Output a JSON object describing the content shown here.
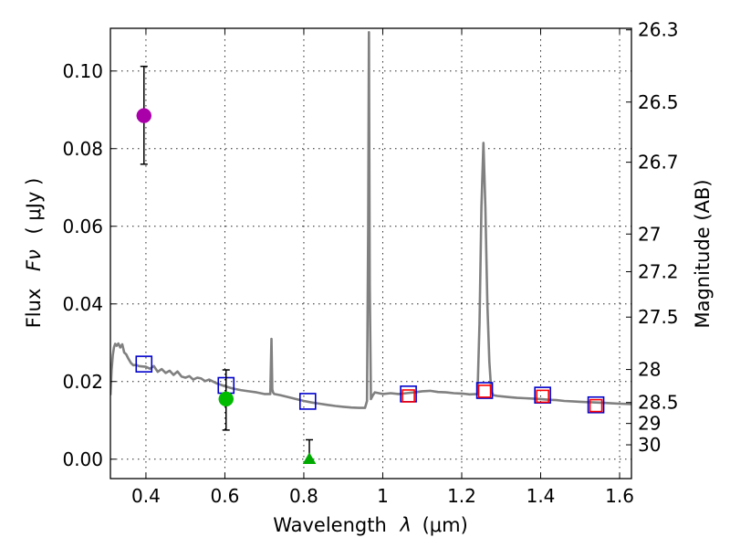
{
  "chart_data": {
    "type": "scatter",
    "xlabel": "Wavelength",
    "xlabel_symbol": "λ",
    "xlabel_unit": "(μm)",
    "ylabel": "Flux",
    "ylabel_symbol": "Fν",
    "ylabel_unit": "( μJy )",
    "y2label": "Magnitude (AB)",
    "xlim": [
      0.31,
      1.63
    ],
    "ylim": [
      -0.005,
      0.111
    ],
    "grid": true,
    "x_ticks": [
      0.4,
      0.6,
      0.8,
      1.0,
      1.2,
      1.4,
      1.6
    ],
    "x_tick_labels": [
      "0.4",
      "0.6",
      "0.8",
      "1",
      "1.2",
      "1.4",
      "1.6"
    ],
    "y_ticks": [
      0.0,
      0.02,
      0.04,
      0.06,
      0.08,
      0.1
    ],
    "y_tick_labels": [
      "0.00",
      "0.02",
      "0.04",
      "0.06",
      "0.08",
      "0.10"
    ],
    "y2_ticks": [
      {
        "label": "26.3",
        "flux": 0.1106
      },
      {
        "label": "26.5",
        "flux": 0.092
      },
      {
        "label": "26.7",
        "flux": 0.0765
      },
      {
        "label": "27",
        "flux": 0.058
      },
      {
        "label": "27.2",
        "flux": 0.0483
      },
      {
        "label": "27.5",
        "flux": 0.0366
      },
      {
        "label": "28",
        "flux": 0.0231
      },
      {
        "label": "28.5",
        "flux": 0.0146
      },
      {
        "label": "29",
        "flux": 0.0092
      },
      {
        "label": "30",
        "flux": 0.0037
      }
    ],
    "series": [
      {
        "name": "model_spectrum",
        "kind": "line",
        "color": "#808080",
        "x": [
          0.31,
          0.313,
          0.316,
          0.319,
          0.322,
          0.326,
          0.33,
          0.335,
          0.34,
          0.345,
          0.35,
          0.356,
          0.362,
          0.368,
          0.375,
          0.382,
          0.39,
          0.4,
          0.41,
          0.42,
          0.43,
          0.44,
          0.45,
          0.46,
          0.47,
          0.48,
          0.49,
          0.5,
          0.51,
          0.52,
          0.53,
          0.54,
          0.55,
          0.56,
          0.58,
          0.6,
          0.62,
          0.64,
          0.66,
          0.68,
          0.7,
          0.715,
          0.718,
          0.72,
          0.722,
          0.725,
          0.74,
          0.76,
          0.78,
          0.8,
          0.82,
          0.84,
          0.86,
          0.88,
          0.9,
          0.92,
          0.94,
          0.955,
          0.96,
          0.963,
          0.965,
          0.967,
          0.97,
          0.975,
          0.98,
          1.0,
          1.02,
          1.04,
          1.06,
          1.08,
          1.1,
          1.12,
          1.14,
          1.16,
          1.18,
          1.2,
          1.22,
          1.24,
          1.245,
          1.25,
          1.255,
          1.26,
          1.265,
          1.27,
          1.275,
          1.28,
          1.29,
          1.3,
          1.32,
          1.34,
          1.36,
          1.38,
          1.4,
          1.42,
          1.44,
          1.46,
          1.48,
          1.5,
          1.52,
          1.54,
          1.56,
          1.58,
          1.6,
          1.63
        ],
        "y": [
          0.0165,
          0.023,
          0.0268,
          0.0288,
          0.0297,
          0.0292,
          0.0298,
          0.0288,
          0.0296,
          0.0275,
          0.027,
          0.0258,
          0.0248,
          0.0242,
          0.0243,
          0.024,
          0.0239,
          0.0238,
          0.0233,
          0.024,
          0.0225,
          0.0232,
          0.0222,
          0.0228,
          0.0217,
          0.0226,
          0.0213,
          0.021,
          0.0214,
          0.0205,
          0.021,
          0.0208,
          0.0201,
          0.0205,
          0.0195,
          0.0188,
          0.0182,
          0.0178,
          0.0175,
          0.0172,
          0.0168,
          0.0168,
          0.031,
          0.018,
          0.0172,
          0.0168,
          0.0165,
          0.016,
          0.0155,
          0.015,
          0.0146,
          0.0143,
          0.014,
          0.0137,
          0.0135,
          0.0133,
          0.0132,
          0.0132,
          0.015,
          0.06,
          0.11,
          0.045,
          0.0155,
          0.0165,
          0.0172,
          0.0168,
          0.017,
          0.0168,
          0.017,
          0.0172,
          0.0175,
          0.0176,
          0.0173,
          0.0172,
          0.017,
          0.0169,
          0.0167,
          0.0168,
          0.035,
          0.065,
          0.0815,
          0.065,
          0.04,
          0.025,
          0.0175,
          0.0165,
          0.0163,
          0.0162,
          0.016,
          0.0158,
          0.0157,
          0.0156,
          0.0155,
          0.0153,
          0.0152,
          0.015,
          0.0149,
          0.0148,
          0.0147,
          0.0146,
          0.0145,
          0.0144,
          0.0143,
          0.0142
        ]
      },
      {
        "name": "model_photometry",
        "kind": "open-square",
        "color": "#0000cc",
        "x": [
          0.395,
          0.603,
          0.81,
          1.065,
          1.258,
          1.405,
          1.54
        ],
        "y": [
          0.0245,
          0.019,
          0.0149,
          0.0168,
          0.0177,
          0.0165,
          0.014
        ]
      },
      {
        "name": "observed_ir_squares",
        "kind": "open-square",
        "color": "#ff0000",
        "x": [
          1.065,
          1.258,
          1.405,
          1.54
        ],
        "y": [
          0.0163,
          0.0175,
          0.0162,
          0.0138
        ]
      },
      {
        "name": "observed_u",
        "kind": "circle",
        "color": "#aa00aa",
        "x": [
          0.395
        ],
        "y": [
          0.0885
        ],
        "yerr_low": [
          0.076
        ],
        "yerr_high": [
          0.1012
        ]
      },
      {
        "name": "observed_v",
        "kind": "circle",
        "color": "#00bb00",
        "x": [
          0.603
        ],
        "y": [
          0.0155
        ],
        "yerr_low": [
          0.0075
        ],
        "yerr_high": [
          0.023
        ]
      },
      {
        "name": "observed_i",
        "kind": "triangle",
        "color": "#00aa00",
        "x": [
          0.814
        ],
        "y": [
          0.0
        ],
        "yerr_low": [
          0.0
        ],
        "yerr_high": [
          0.005
        ]
      }
    ]
  }
}
